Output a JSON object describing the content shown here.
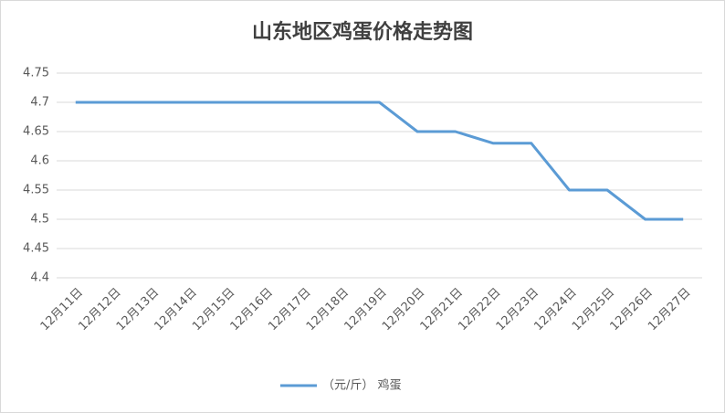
{
  "chart_data": {
    "type": "line",
    "title": "山东地区鸡蛋价格走势图",
    "categories": [
      "12月11日",
      "12月12日",
      "12月13日",
      "12月14日",
      "12月15日",
      "12月16日",
      "12月17日",
      "12月18日",
      "12月19日",
      "12月20日",
      "12月21日",
      "12月22日",
      "12月23日",
      "12月24日",
      "12月25日",
      "12月26日",
      "12月27日"
    ],
    "series": [
      {
        "name": "（元/斤） 鸡蛋",
        "color": "#5b9bd5",
        "values": [
          4.7,
          4.7,
          4.7,
          4.7,
          4.7,
          4.7,
          4.7,
          4.7,
          4.7,
          4.65,
          4.65,
          4.63,
          4.63,
          4.55,
          4.55,
          4.5,
          4.5
        ]
      }
    ],
    "ylim": [
      4.4,
      4.75
    ],
    "yticks": [
      4.4,
      4.45,
      4.5,
      4.55,
      4.6,
      4.65,
      4.7,
      4.75
    ],
    "grid": true,
    "legend": "bottom"
  }
}
